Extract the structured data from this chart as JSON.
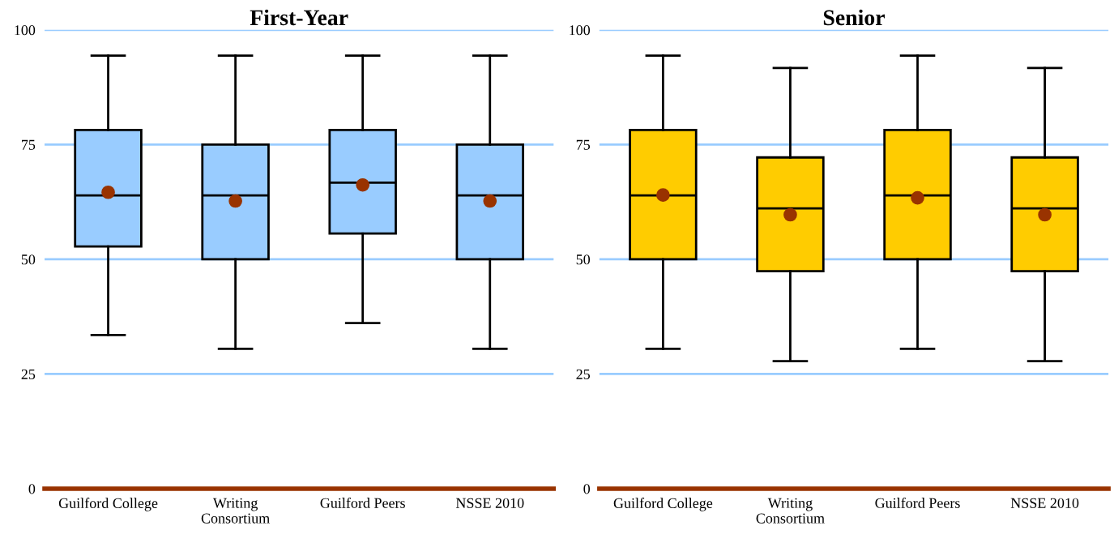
{
  "chart_data": [
    {
      "type": "box",
      "title": "First-Year",
      "categories": [
        "Guilford College",
        "Writing Consortium",
        "Guilford Peers",
        "NSSE 2010"
      ],
      "color": "#99ccff",
      "ylim": [
        0,
        100
      ],
      "yticks": [
        0,
        25,
        50,
        75,
        100
      ],
      "grid": "y",
      "boxes": [
        {
          "low": 33.5,
          "q1": 52.8,
          "median": 63.9,
          "q3": 78.2,
          "high": 94.4,
          "mean": 64.6
        },
        {
          "low": 30.5,
          "q1": 50,
          "median": 63.9,
          "q3": 75,
          "high": 94.4,
          "mean": 62.7
        },
        {
          "low": 36.1,
          "q1": 55.6,
          "median": 66.7,
          "q3": 78.2,
          "high": 94.4,
          "mean": 66.2
        },
        {
          "low": 30.5,
          "q1": 50,
          "median": 63.9,
          "q3": 75,
          "high": 94.4,
          "mean": 62.7
        }
      ]
    },
    {
      "type": "box",
      "title": "Senior",
      "categories": [
        "Guilford College",
        "Writing Consortium",
        "Guilford Peers",
        "NSSE 2010"
      ],
      "color": "#ffcc00",
      "ylim": [
        0,
        100
      ],
      "yticks": [
        0,
        25,
        50,
        75,
        100
      ],
      "grid": "y",
      "boxes": [
        {
          "low": 30.5,
          "q1": 50,
          "median": 63.9,
          "q3": 78.2,
          "high": 94.4,
          "mean": 64.0
        },
        {
          "low": 27.8,
          "q1": 47.4,
          "median": 61.1,
          "q3": 72.2,
          "high": 91.7,
          "mean": 59.7
        },
        {
          "low": 30.5,
          "q1": 50,
          "median": 63.9,
          "q3": 78.2,
          "high": 94.4,
          "mean": 63.4
        },
        {
          "low": 27.8,
          "q1": 47.4,
          "median": 61.1,
          "q3": 72.2,
          "high": 91.7,
          "mean": 59.7
        }
      ]
    }
  ]
}
